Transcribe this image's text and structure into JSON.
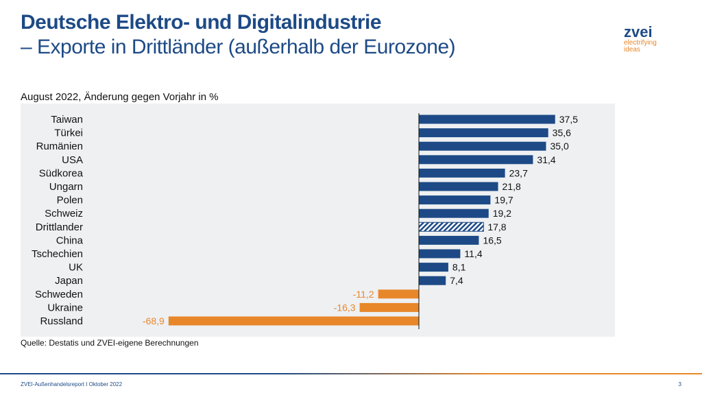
{
  "header": {
    "title": "Deutsche Elektro- und Digitalindustrie",
    "subtitle": "– Exporte in Drittländer (außerhalb der Eurozone)"
  },
  "logo": {
    "name": "zvei",
    "tagline_1": "electrifying",
    "tagline_2": "ideas"
  },
  "footer": {
    "text": "ZVEI-Außenhandelsreport I Oktober 2022",
    "page": "3"
  },
  "colors": {
    "positive": "#1d4a86",
    "negative": "#e8872a",
    "panel": "#eef0f2"
  },
  "chart_data": {
    "type": "bar",
    "orientation": "horizontal",
    "title": "",
    "subtitle": "August 2022, Änderung gegen Vorjahr in %",
    "source": "Quelle: Destatis und ZVEI-eigene Berechnungen",
    "categories": [
      "Taiwan",
      "Türkei",
      "Rumänien",
      "USA",
      "Südkorea",
      "Ungarn",
      "Polen",
      "Schweiz",
      "Drittlander",
      "China",
      "Tschechien",
      "UK",
      "Japan",
      "Schweden",
      "Ukraine",
      "Russland"
    ],
    "values": [
      37.5,
      35.6,
      35.0,
      31.4,
      23.7,
      21.8,
      19.7,
      19.2,
      17.8,
      16.5,
      11.4,
      8.1,
      7.4,
      -11.2,
      -16.3,
      -68.9
    ],
    "labels": [
      "37,5",
      "35,6",
      "35,0",
      "31,4",
      "23,7",
      "21,8",
      "19,7",
      "19,2",
      "17,8",
      "16,5",
      "11,4",
      "8,1",
      "7,4",
      "-11,2",
      "-16,3",
      "-68,9"
    ],
    "hatched": [
      "Drittlander"
    ],
    "xlim": [
      -68.9,
      37.5
    ],
    "grid": false
  }
}
